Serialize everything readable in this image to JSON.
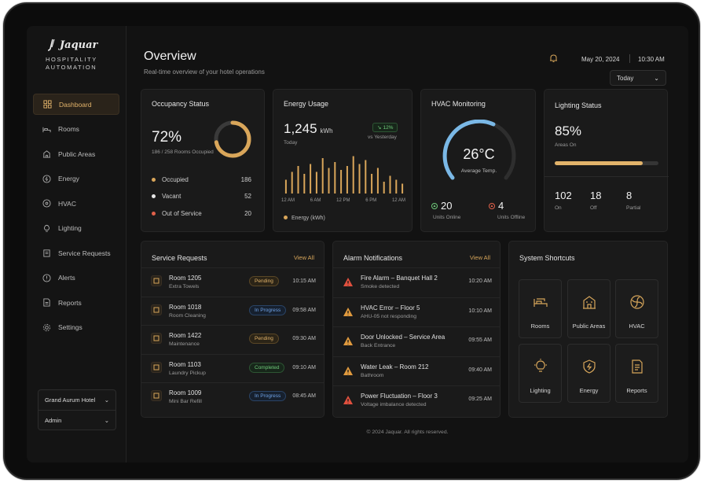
{
  "brand": {
    "name": "Jaquar",
    "sub1": "HOSPITALITY",
    "sub2": "AUTOMATION"
  },
  "nav": [
    {
      "label": "Dashboard",
      "icon": "dashboard-icon",
      "active": true
    },
    {
      "label": "Rooms",
      "icon": "bed-icon"
    },
    {
      "label": "Public Areas",
      "icon": "building-icon"
    },
    {
      "label": "Energy",
      "icon": "energy-icon"
    },
    {
      "label": "HVAC",
      "icon": "fan-icon"
    },
    {
      "label": "Lighting",
      "icon": "bulb-icon"
    },
    {
      "label": "Service Requests",
      "icon": "clipboard-icon"
    },
    {
      "label": "Alerts",
      "icon": "alert-icon"
    },
    {
      "label": "Reports",
      "icon": "report-icon"
    },
    {
      "label": "Settings",
      "icon": "gear-icon"
    }
  ],
  "hotel_select": {
    "hotel": "Grand Aurum Hotel",
    "user": "Admin"
  },
  "header": {
    "title": "Overview",
    "subtitle": "Real-time overview of your hotel operations",
    "date": "May 20, 2024",
    "time": "10:30 AM",
    "range": "Today"
  },
  "occupancy": {
    "title": "Occupancy Status",
    "percent": "72%",
    "percent_value": 0.72,
    "detail": "186 / 258 Rooms Occupied",
    "items": [
      {
        "label": "Occupied",
        "value": "186",
        "color": "#d9a65a"
      },
      {
        "label": "Vacant",
        "value": "52",
        "color": "#e6e6e6"
      },
      {
        "label": "Out of Service",
        "value": "20",
        "color": "#e0604a"
      }
    ]
  },
  "energy": {
    "title": "Energy Usage",
    "value": "1,245",
    "unit": "kWh",
    "period": "Today",
    "change": "12%",
    "change_label": "vs Yesterday",
    "legend": "Energy (kWh)",
    "ticks": [
      "12 AM",
      "6 AM",
      "12 PM",
      "6 PM",
      "12 AM"
    ],
    "bars": [
      0.35,
      0.55,
      0.7,
      0.5,
      0.75,
      0.55,
      0.9,
      0.65,
      0.8,
      0.6,
      0.7,
      0.95,
      0.75,
      0.85,
      0.5,
      0.65,
      0.3,
      0.45,
      0.35,
      0.25
    ]
  },
  "hvac": {
    "title": "HVAC Monitoring",
    "temp": "26°C",
    "temp_label": "Average Temp.",
    "online": "20",
    "online_label": "Units Online",
    "offline": "4",
    "offline_label": "Units Offline"
  },
  "lighting": {
    "title": "Lighting Status",
    "percent": "85%",
    "percent_value": 0.85,
    "label": "Areas On",
    "stats": [
      {
        "value": "102",
        "label": "On"
      },
      {
        "value": "18",
        "label": "Off"
      },
      {
        "value": "8",
        "label": "Partial"
      }
    ]
  },
  "service": {
    "title": "Service Requests",
    "view_all": "View All",
    "rows": [
      {
        "room": "Room 1205",
        "task": "Extra Towels",
        "status": "Pending",
        "type": "pending",
        "time": "10:15 AM"
      },
      {
        "room": "Room 1018",
        "task": "Room Cleaning",
        "status": "In Progress",
        "type": "progress",
        "time": "09:58 AM"
      },
      {
        "room": "Room 1422",
        "task": "Maintenance",
        "status": "Pending",
        "type": "pending",
        "time": "09:30 AM"
      },
      {
        "room": "Room 1103",
        "task": "Laundry Pickup",
        "status": "Completed",
        "type": "done",
        "time": "09:10 AM"
      },
      {
        "room": "Room 1009",
        "task": "Mini Bar Refill",
        "status": "In Progress",
        "type": "progress",
        "time": "08:45 AM"
      }
    ]
  },
  "alarms": {
    "title": "Alarm Notifications",
    "view_all": "View All",
    "rows": [
      {
        "title": "Fire Alarm – Banquet Hall 2",
        "detail": "Smoke detected",
        "time": "10:20 AM",
        "color": "#e0503e"
      },
      {
        "title": "HVAC Error – Floor 5",
        "detail": "AHU-05 not responding",
        "time": "10:10 AM",
        "color": "#e09a3e"
      },
      {
        "title": "Door Unlocked – Service Area",
        "detail": "Back Entrance",
        "time": "09:55 AM",
        "color": "#e09a3e"
      },
      {
        "title": "Water Leak – Room 212",
        "detail": "Bathroom",
        "time": "09:40 AM",
        "color": "#e09a3e"
      },
      {
        "title": "Power Fluctuation – Floor 3",
        "detail": "Voltage imbalance detected",
        "time": "09:25 AM",
        "color": "#e0503e"
      }
    ]
  },
  "shortcuts": {
    "title": "System Shortcuts",
    "items": [
      "Rooms",
      "Public Areas",
      "HVAC",
      "Lighting",
      "Energy",
      "Reports"
    ]
  },
  "footer": "© 2024 Jaquar. All rights reserved."
}
